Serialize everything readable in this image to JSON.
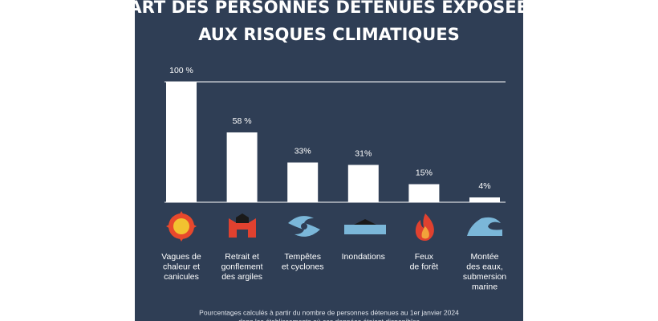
{
  "chart_data": {
    "type": "bar",
    "title": [
      "PART DES PERSONNES DÉTENUES EXPOSÉES",
      "AUX RISQUES CLIMATIQUES"
    ],
    "categories": [
      [
        "Vagues de",
        "chaleur et",
        "canicules"
      ],
      [
        "Retrait et",
        "gonflement",
        "des argiles"
      ],
      [
        "Tempêtes",
        "et cyclones"
      ],
      [
        "Inondations"
      ],
      [
        "Feux",
        "de forêt"
      ],
      [
        "Montée",
        "des eaux,",
        "submersion",
        "marine"
      ]
    ],
    "values": [
      100,
      58,
      33,
      31,
      15,
      4
    ],
    "value_labels": [
      "100 %",
      "58 %",
      "33%",
      "31%",
      "15%",
      "4%"
    ],
    "color": "#ffffff",
    "ylim": [
      0,
      100
    ],
    "footnote": [
      "Pourcentages calculés à partir du nombre de personnes détenues au 1er janvier 2024",
      "dans les établissements où ces données étaient disponibles"
    ]
  }
}
